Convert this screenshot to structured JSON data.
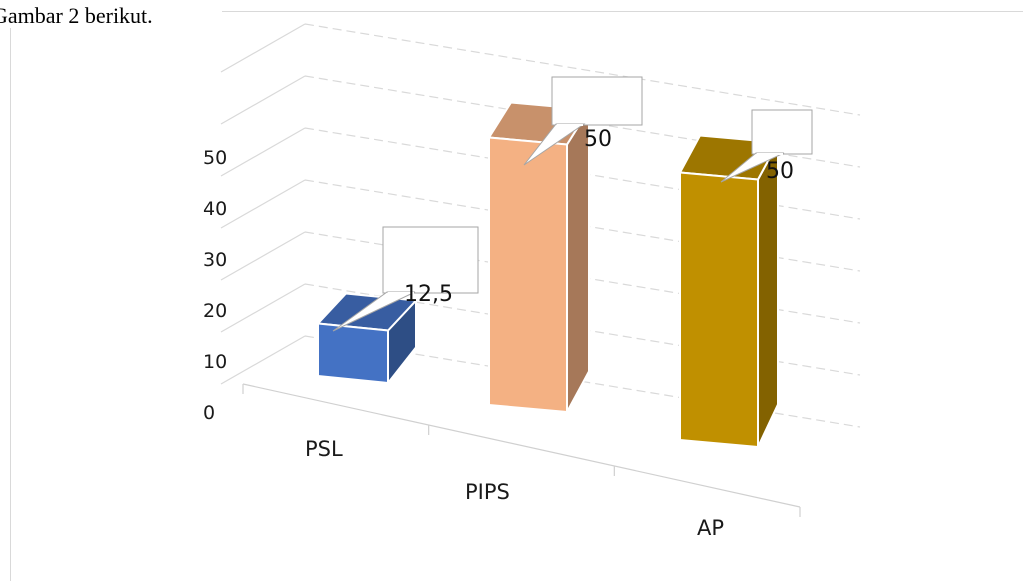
{
  "document": {
    "caption": "Gambar 2 berikut."
  },
  "chart_data": {
    "type": "bar",
    "categories": [
      "PSL",
      "PIPS",
      "AP"
    ],
    "values": [
      12.5,
      50,
      50
    ],
    "value_labels": [
      "12,5",
      "50",
      "50"
    ],
    "ylim": [
      0,
      60
    ],
    "yticks": [
      0,
      10,
      20,
      30,
      40,
      50
    ],
    "ytick_labels": [
      "0",
      "10",
      "20",
      "30",
      "40",
      "50"
    ],
    "grid": true,
    "colors": [
      "#4472c4",
      "#f4b183",
      "#c09000"
    ]
  }
}
